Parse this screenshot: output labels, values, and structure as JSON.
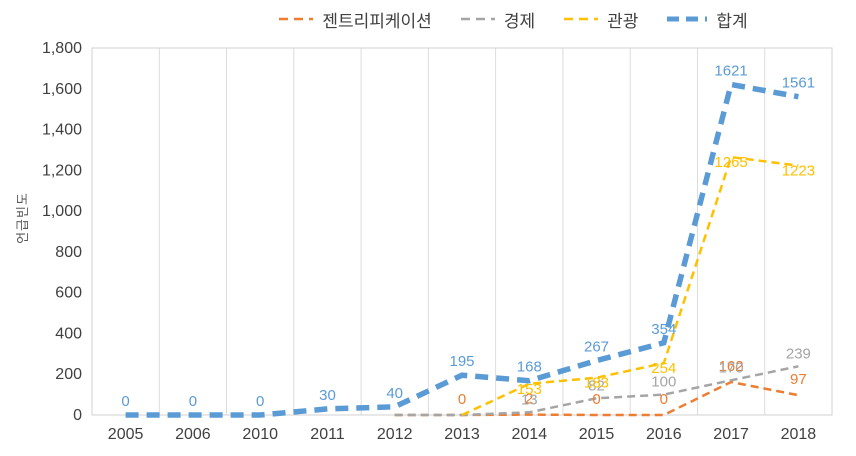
{
  "chart_data": {
    "type": "line",
    "title": "",
    "xlabel": "",
    "ylabel": "언급빈도",
    "ylim": [
      0,
      1800
    ],
    "y_tick_step": 200,
    "y_tick_labels": [
      "0",
      "200",
      "400",
      "600",
      "800",
      "1,000",
      "1,200",
      "1,400",
      "1,600",
      "1,800"
    ],
    "grid": "vertical",
    "legend_position": "top",
    "categories": [
      "2005",
      "2006",
      "2010",
      "2011",
      "2012",
      "2013",
      "2014",
      "2015",
      "2016",
      "2017",
      "2018"
    ],
    "series": [
      {
        "key": "gentrification",
        "name": "젠트리피케이션",
        "color": "#ED7D31",
        "width": 2.5,
        "label_dy": -11,
        "values": [
          null,
          null,
          null,
          null,
          0,
          0,
          2,
          0,
          0,
          162,
          97
        ],
        "labels": [
          null,
          null,
          null,
          null,
          null,
          "0",
          "2",
          "0",
          "0",
          "162",
          "97"
        ]
      },
      {
        "key": "economy",
        "name": "경제",
        "color": "#A5A5A5",
        "width": 2.5,
        "label_dy": -8,
        "values": [
          null,
          null,
          null,
          null,
          0,
          0,
          13,
          82,
          100,
          170,
          239
        ],
        "labels": [
          null,
          null,
          null,
          null,
          null,
          null,
          "13",
          "82",
          "100",
          "170",
          "239"
        ]
      },
      {
        "key": "tourism",
        "name": "관광",
        "color": "#FFC000",
        "width": 2.5,
        "label_dy": 10,
        "values": [
          null,
          null,
          null,
          null,
          null,
          0,
          153,
          183,
          254,
          1265,
          1223
        ],
        "labels": [
          null,
          null,
          null,
          null,
          null,
          null,
          "153",
          "183",
          "254",
          "1265",
          "1223"
        ]
      },
      {
        "key": "total",
        "name": "합계",
        "color": "#5B9BD5",
        "width": 5.5,
        "label_dy": -9,
        "values": [
          0,
          0,
          0,
          30,
          40,
          195,
          168,
          267,
          354,
          1621,
          1561
        ],
        "labels": [
          "0",
          "0",
          "0",
          "30",
          "40",
          "195",
          "168",
          "267",
          "354",
          "1621",
          "1561"
        ]
      }
    ]
  }
}
